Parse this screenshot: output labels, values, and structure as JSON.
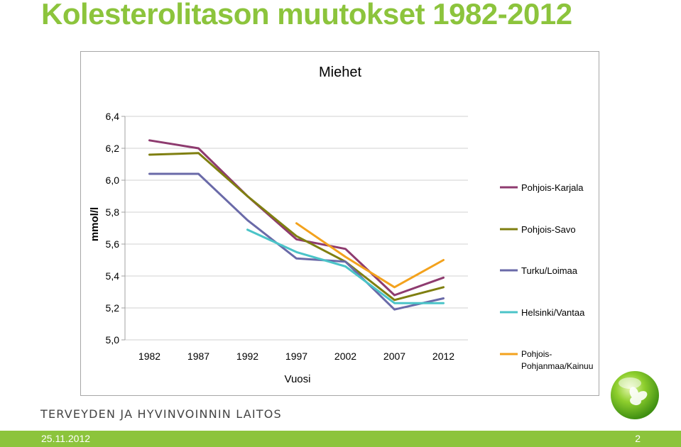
{
  "slide": {
    "title": "Kolesterolitason muutokset 1982-2012",
    "footer_org": "TERVEYDEN JA HYVINVOINNIN LAITOS",
    "date": "25.11.2012",
    "page_number": "2"
  },
  "chart_data": {
    "type": "line",
    "title": "Miehet",
    "xlabel": "Vuosi",
    "ylabel": "mmol/l",
    "categories": [
      "1982",
      "1987",
      "1992",
      "1997",
      "2002",
      "2007",
      "2012"
    ],
    "y_tick_labels": [
      "5,0",
      "5,2",
      "5,4",
      "5,6",
      "5,8",
      "6,0",
      "6,2",
      "6,4"
    ],
    "ylim": [
      5.0,
      6.4
    ],
    "grid": true,
    "legend_position": "right",
    "series": [
      {
        "name": "Pohjois-Karjala",
        "color": "#8e3b6f",
        "values": [
          6.25,
          6.2,
          5.9,
          5.63,
          5.57,
          5.28,
          5.39
        ]
      },
      {
        "name": "Pohjois-Savo",
        "color": "#7f7f10",
        "values": [
          6.16,
          6.17,
          5.9,
          5.65,
          5.49,
          5.25,
          5.33
        ]
      },
      {
        "name": "Turku/Loimaa",
        "color": "#6a6aa8",
        "values": [
          6.04,
          6.04,
          5.75,
          5.51,
          5.49,
          5.19,
          5.26
        ]
      },
      {
        "name": "Helsinki/Vantaa",
        "color": "#4bc4c8",
        "values": [
          null,
          null,
          5.69,
          5.55,
          5.46,
          5.23,
          5.23
        ]
      },
      {
        "name": "Pohjois-Pohjanmaa/Kainuu",
        "color": "#f3a21d",
        "values": [
          null,
          null,
          null,
          5.73,
          5.52,
          5.33,
          5.5
        ]
      }
    ]
  }
}
